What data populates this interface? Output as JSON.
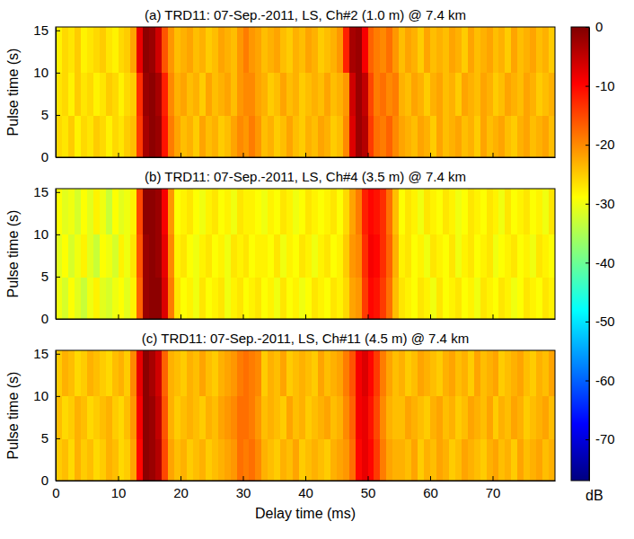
{
  "chart_data": {
    "type": "heatmap",
    "xlabel": "Delay time (ms)",
    "ylabel": "Pulse time (s)",
    "xlim": [
      0,
      80
    ],
    "xticks": [
      0,
      10,
      20,
      30,
      40,
      50,
      60,
      70
    ],
    "ylim": [
      0,
      15.4
    ],
    "yticks": [
      0,
      5,
      10,
      15
    ],
    "x_edges": [
      0,
      1,
      2,
      3,
      4,
      5,
      6,
      7,
      8,
      9,
      10,
      11,
      12,
      13,
      14,
      15,
      16,
      17,
      18,
      19,
      20,
      21,
      22,
      23,
      24,
      25,
      26,
      27,
      28,
      29,
      30,
      31,
      32,
      33,
      34,
      35,
      36,
      37,
      38,
      39,
      40,
      41,
      42,
      43,
      44,
      45,
      46,
      47,
      48,
      49,
      50,
      51,
      52,
      53,
      54,
      55,
      56,
      57,
      58,
      59,
      60,
      61,
      62,
      63,
      64,
      65,
      66,
      67,
      68,
      69,
      70,
      71,
      72,
      73,
      74,
      75,
      76,
      77,
      78,
      79,
      80
    ],
    "y_edges": [
      0,
      5,
      10,
      15.4
    ],
    "colorbar": {
      "lim": [
        -77,
        0
      ],
      "ticks": [
        0,
        -10,
        -20,
        -30,
        -40,
        -50,
        -60,
        -70
      ],
      "label": "dB"
    },
    "panels": [
      {
        "title": "(a) TRD11: 07-Sep.-2011, LS, Ch#2 (1.0 m) @ 7.4 km",
        "cells": [
          [
            -26,
            -27,
            -25,
            -28,
            -26,
            -27,
            -25,
            -26,
            -28,
            -26,
            -27,
            -25,
            -24,
            -14,
            -3,
            -1,
            -2,
            -11,
            -19,
            -22,
            -24,
            -23,
            -25,
            -22,
            -24,
            -23,
            -25,
            -24,
            -22,
            -20,
            -21,
            -19,
            -21,
            -24,
            -23,
            -25,
            -24,
            -22,
            -24,
            -25,
            -23,
            -24,
            -22,
            -23,
            -25,
            -24,
            -20,
            -7,
            -2,
            -4,
            -14,
            -18,
            -19,
            -17,
            -20,
            -22,
            -23,
            -24,
            -22,
            -23,
            -25,
            -22,
            -24,
            -23,
            -22,
            -24,
            -23,
            -25,
            -22,
            -24,
            -23,
            -22,
            -24,
            -25,
            -23,
            -22,
            -24,
            -23,
            -22,
            -24
          ],
          [
            -27,
            -26,
            -28,
            -25,
            -27,
            -26,
            -28,
            -27,
            -25,
            -26,
            -28,
            -26,
            -25,
            -13,
            -2,
            -1,
            -3,
            -12,
            -20,
            -23,
            -22,
            -24,
            -23,
            -25,
            -22,
            -24,
            -23,
            -22,
            -24,
            -21,
            -20,
            -20,
            -22,
            -23,
            -25,
            -24,
            -22,
            -24,
            -23,
            -25,
            -24,
            -23,
            -24,
            -22,
            -24,
            -23,
            -21,
            -6,
            -2,
            -5,
            -15,
            -19,
            -18,
            -20,
            -19,
            -23,
            -24,
            -22,
            -23,
            -25,
            -23,
            -22,
            -24,
            -23,
            -25,
            -22,
            -23,
            -24,
            -22,
            -23,
            -25,
            -24,
            -22,
            -23,
            -24,
            -22,
            -23,
            -25,
            -24,
            -23
          ],
          [
            -28,
            -26,
            -27,
            -25,
            -28,
            -27,
            -26,
            -25,
            -27,
            -28,
            -26,
            -25,
            -22,
            -8,
            -1,
            -2,
            -6,
            -16,
            -21,
            -24,
            -23,
            -22,
            -24,
            -23,
            -25,
            -24,
            -22,
            -23,
            -24,
            -21,
            -19,
            -21,
            -22,
            -24,
            -23,
            -22,
            -24,
            -25,
            -23,
            -24,
            -22,
            -23,
            -25,
            -24,
            -23,
            -21,
            -12,
            -3,
            -2,
            -9,
            -17,
            -19,
            -20,
            -18,
            -21,
            -24,
            -22,
            -23,
            -25,
            -22,
            -24,
            -23,
            -24,
            -22,
            -23,
            -25,
            -22,
            -24,
            -23,
            -22,
            -24,
            -23,
            -25,
            -22,
            -24,
            -23,
            -22,
            -24,
            -23,
            -25
          ]
        ]
      },
      {
        "title": "(b) TRD11: 07-Sep.-2011, LS, Ch#4 (3.5 m) @ 7.4 km",
        "cells": [
          [
            -30,
            -32,
            -29,
            -31,
            -33,
            -30,
            -28,
            -31,
            -32,
            -30,
            -29,
            -31,
            -28,
            -17,
            -2,
            -1,
            -1,
            -7,
            -19,
            -27,
            -29,
            -28,
            -30,
            -27,
            -29,
            -28,
            -27,
            -30,
            -28,
            -27,
            -29,
            -28,
            -27,
            -29,
            -28,
            -30,
            -27,
            -29,
            -28,
            -30,
            -29,
            -27,
            -28,
            -29,
            -27,
            -28,
            -26,
            -22,
            -21,
            -14,
            -10,
            -11,
            -14,
            -18,
            -24,
            -27,
            -28,
            -29,
            -27,
            -28,
            -30,
            -27,
            -29,
            -28,
            -27,
            -29,
            -28,
            -30,
            -27,
            -28,
            -29,
            -27,
            -28,
            -30,
            -29,
            -27,
            -28,
            -29,
            -27,
            -28
          ],
          [
            -31,
            -29,
            -32,
            -30,
            -28,
            -31,
            -33,
            -29,
            -30,
            -32,
            -28,
            -30,
            -27,
            -16,
            -2,
            -1,
            -2,
            -8,
            -20,
            -28,
            -27,
            -29,
            -30,
            -28,
            -27,
            -29,
            -28,
            -30,
            -27,
            -28,
            -27,
            -29,
            -28,
            -28,
            -29,
            -27,
            -30,
            -28,
            -29,
            -27,
            -28,
            -30,
            -28,
            -27,
            -29,
            -28,
            -25,
            -21,
            -20,
            -13,
            -9,
            -10,
            -13,
            -17,
            -23,
            -28,
            -27,
            -29,
            -28,
            -30,
            -27,
            -28,
            -29,
            -27,
            -30,
            -28,
            -27,
            -29,
            -28,
            -27,
            -30,
            -29,
            -28,
            -27,
            -29,
            -28,
            -30,
            -27,
            -28,
            -29
          ],
          [
            -29,
            -31,
            -30,
            -32,
            -29,
            -31,
            -28,
            -30,
            -33,
            -29,
            -31,
            -30,
            -28,
            -15,
            -1,
            -1,
            -2,
            -9,
            -21,
            -29,
            -28,
            -27,
            -29,
            -30,
            -28,
            -27,
            -29,
            -28,
            -30,
            -27,
            -28,
            -28,
            -29,
            -30,
            -28,
            -29,
            -27,
            -28,
            -30,
            -29,
            -27,
            -28,
            -29,
            -28,
            -27,
            -29,
            -26,
            -22,
            -19,
            -12,
            -10,
            -11,
            -13,
            -18,
            -24,
            -29,
            -27,
            -28,
            -30,
            -27,
            -28,
            -29,
            -27,
            -28,
            -30,
            -29,
            -27,
            -28,
            -29,
            -27,
            -28,
            -30,
            -27,
            -29,
            -28,
            -27,
            -29,
            -28,
            -30,
            -27
          ]
        ]
      },
      {
        "title": "(c) TRD11: 07-Sep.-2011, LS, Ch#11 (4.5 m) @ 7.4 km",
        "cells": [
          [
            -25,
            -24,
            -26,
            -23,
            -25,
            -24,
            -26,
            -25,
            -23,
            -24,
            -26,
            -25,
            -22,
            -10,
            -1,
            -2,
            -4,
            -15,
            -22,
            -24,
            -23,
            -25,
            -24,
            -23,
            -25,
            -24,
            -23,
            -22,
            -21,
            -18,
            -19,
            -18,
            -20,
            -23,
            -24,
            -25,
            -23,
            -24,
            -22,
            -25,
            -24,
            -23,
            -24,
            -25,
            -23,
            -22,
            -21,
            -18,
            -10,
            -8,
            -10,
            -14,
            -19,
            -22,
            -23,
            -23,
            -24,
            -22,
            -25,
            -23,
            -24,
            -22,
            -23,
            -25,
            -24,
            -22,
            -23,
            -24,
            -25,
            -23,
            -22,
            -24,
            -23,
            -25,
            -22,
            -24,
            -23,
            -22,
            -24,
            -23
          ],
          [
            -24,
            -26,
            -25,
            -23,
            -24,
            -26,
            -25,
            -24,
            -23,
            -25,
            -26,
            -24,
            -21,
            -9,
            -1,
            -2,
            -5,
            -16,
            -23,
            -25,
            -24,
            -23,
            -24,
            -25,
            -23,
            -24,
            -22,
            -21,
            -20,
            -18,
            -18,
            -19,
            -21,
            -24,
            -23,
            -24,
            -25,
            -22,
            -24,
            -23,
            -25,
            -24,
            -23,
            -22,
            -24,
            -23,
            -20,
            -17,
            -9,
            -8,
            -11,
            -15,
            -20,
            -23,
            -24,
            -24,
            -22,
            -23,
            -24,
            -25,
            -23,
            -22,
            -24,
            -23,
            -25,
            -24,
            -22,
            -23,
            -24,
            -22,
            -25,
            -23,
            -24,
            -22,
            -23,
            -25,
            -24,
            -23,
            -22,
            -24
          ],
          [
            -25,
            -23,
            -24,
            -26,
            -25,
            -23,
            -24,
            -25,
            -26,
            -24,
            -23,
            -25,
            -20,
            -8,
            -1,
            -3,
            -6,
            -17,
            -23,
            -24,
            -25,
            -23,
            -24,
            -22,
            -24,
            -25,
            -23,
            -22,
            -21,
            -19,
            -18,
            -19,
            -20,
            -25,
            -23,
            -24,
            -22,
            -25,
            -24,
            -23,
            -24,
            -25,
            -22,
            -24,
            -23,
            -22,
            -19,
            -16,
            -9,
            -7,
            -10,
            -14,
            -19,
            -22,
            -24,
            -23,
            -25,
            -24,
            -22,
            -23,
            -24,
            -25,
            -23,
            -22,
            -24,
            -23,
            -25,
            -22,
            -24,
            -23,
            -22,
            -25,
            -24,
            -23,
            -22,
            -24,
            -25,
            -23,
            -24,
            -22
          ]
        ]
      }
    ]
  }
}
